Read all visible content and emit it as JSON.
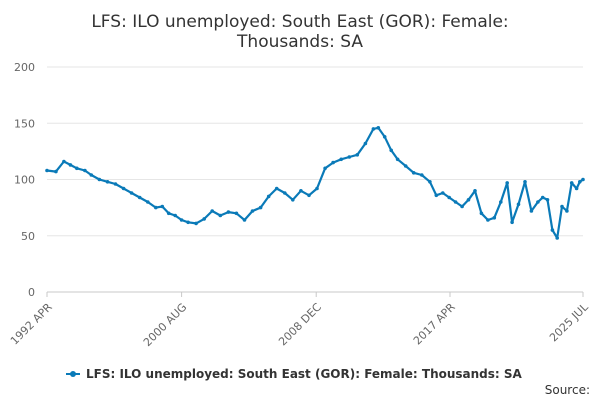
{
  "chart_data": {
    "type": "line",
    "title_line1": "LFS: ILO unemployed: South East (GOR): Female:",
    "title_line2": "Thousands: SA",
    "x_tick_labels": [
      "1992 APR",
      "2000 AUG",
      "2008 DEC",
      "2017 APR",
      "2025 JUL"
    ],
    "x_range": [
      "1992 APR",
      "2025 JUL"
    ],
    "ylim": [
      0,
      200
    ],
    "y_ticks": [
      0,
      50,
      100,
      150,
      200
    ],
    "grid": true,
    "legend_position": "bottom",
    "series": [
      {
        "name": "LFS: ILO unemployed: South East (GOR): Female: Thousands: SA",
        "color": "#0a7ab8",
        "points": [
          [
            1992.25,
            108
          ],
          [
            1992.8,
            107
          ],
          [
            1993.3,
            116
          ],
          [
            1993.7,
            113
          ],
          [
            1994.1,
            110
          ],
          [
            1994.6,
            108
          ],
          [
            1995.0,
            104
          ],
          [
            1995.5,
            100
          ],
          [
            1996.0,
            98
          ],
          [
            1996.5,
            96
          ],
          [
            1997.0,
            92
          ],
          [
            1997.5,
            88
          ],
          [
            1998.0,
            84
          ],
          [
            1998.5,
            80
          ],
          [
            1999.0,
            75
          ],
          [
            1999.4,
            76
          ],
          [
            1999.8,
            70
          ],
          [
            2000.2,
            68
          ],
          [
            2000.6,
            64
          ],
          [
            2001.0,
            62
          ],
          [
            2001.5,
            61
          ],
          [
            2002.0,
            65
          ],
          [
            2002.5,
            72
          ],
          [
            2003.0,
            68
          ],
          [
            2003.5,
            71
          ],
          [
            2004.0,
            70
          ],
          [
            2004.5,
            64
          ],
          [
            2005.0,
            72
          ],
          [
            2005.5,
            75
          ],
          [
            2006.0,
            85
          ],
          [
            2006.5,
            92
          ],
          [
            2007.0,
            88
          ],
          [
            2007.5,
            82
          ],
          [
            2008.0,
            90
          ],
          [
            2008.5,
            86
          ],
          [
            2009.0,
            92
          ],
          [
            2009.5,
            110
          ],
          [
            2010.0,
            115
          ],
          [
            2010.5,
            118
          ],
          [
            2011.0,
            120
          ],
          [
            2011.5,
            122
          ],
          [
            2012.0,
            132
          ],
          [
            2012.5,
            145
          ],
          [
            2012.8,
            146
          ],
          [
            2013.2,
            138
          ],
          [
            2013.6,
            126
          ],
          [
            2014.0,
            118
          ],
          [
            2014.5,
            112
          ],
          [
            2015.0,
            106
          ],
          [
            2015.5,
            104
          ],
          [
            2016.0,
            98
          ],
          [
            2016.4,
            86
          ],
          [
            2016.8,
            88
          ],
          [
            2017.2,
            84
          ],
          [
            2017.6,
            80
          ],
          [
            2018.0,
            76
          ],
          [
            2018.4,
            82
          ],
          [
            2018.8,
            90
          ],
          [
            2019.2,
            70
          ],
          [
            2019.6,
            64
          ],
          [
            2020.0,
            66
          ],
          [
            2020.4,
            80
          ],
          [
            2020.8,
            97
          ],
          [
            2021.1,
            62
          ],
          [
            2021.5,
            78
          ],
          [
            2021.9,
            98
          ],
          [
            2022.3,
            72
          ],
          [
            2022.7,
            80
          ],
          [
            2023.0,
            84
          ],
          [
            2023.3,
            82
          ],
          [
            2023.6,
            55
          ],
          [
            2023.9,
            48
          ],
          [
            2024.2,
            76
          ],
          [
            2024.5,
            72
          ],
          [
            2024.8,
            97
          ],
          [
            2025.1,
            92
          ],
          [
            2025.3,
            98
          ],
          [
            2025.5,
            100
          ]
        ]
      }
    ]
  },
  "footer": {
    "source_label": "Source:"
  }
}
